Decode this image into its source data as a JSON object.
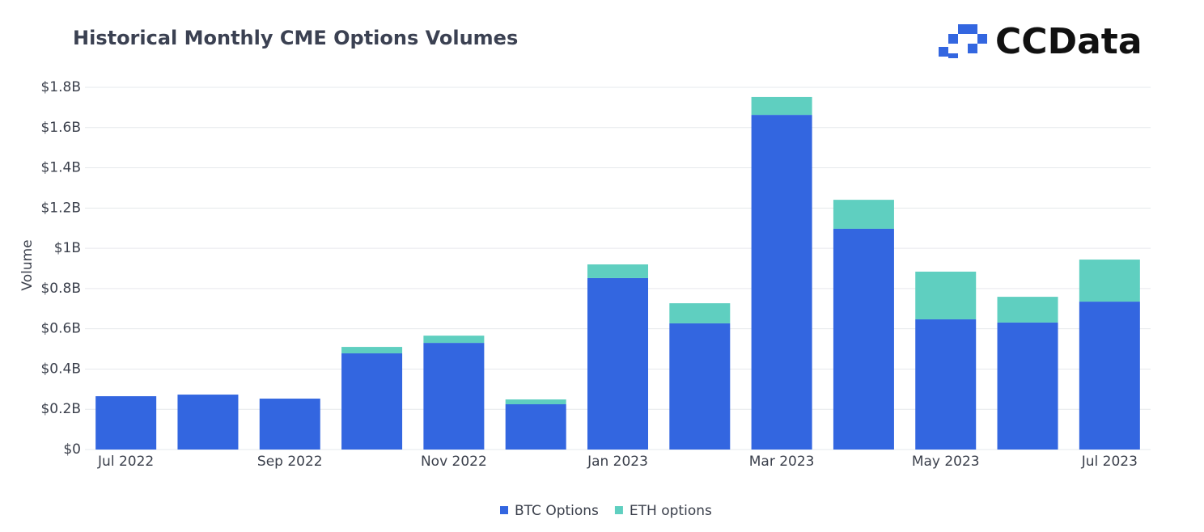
{
  "brand": "CCData",
  "chart_data": {
    "type": "stacked-bar",
    "title": "Historical Monthly CME Options Volumes",
    "y_label": "Volume",
    "categories": [
      "Jul 2022",
      null,
      "Sep 2022",
      null,
      "Nov 2022",
      null,
      "Jan 2023",
      null,
      "Mar 2023",
      null,
      "May 2023",
      null,
      "Jul 2023"
    ],
    "series": [
      {
        "name": "BTC Options",
        "color": "#3366e0",
        "values": [
          265000000,
          273000000,
          253000000,
          478000000,
          530000000,
          225000000,
          852000000,
          627000000,
          1663000000,
          1097000000,
          647000000,
          631000000,
          735000000
        ]
      },
      {
        "name": "ETH options",
        "color": "#5fcfc0",
        "values": [
          0,
          0,
          0,
          32000000,
          36000000,
          24000000,
          68000000,
          100000000,
          89000000,
          144000000,
          237000000,
          128000000,
          209000000
        ]
      }
    ],
    "ylim": [
      0,
      1800000000
    ],
    "yticks": [
      {
        "value": 0,
        "label": "$0"
      },
      {
        "value": 200000000,
        "label": "$0.2B"
      },
      {
        "value": 400000000,
        "label": "$0.4B"
      },
      {
        "value": 600000000,
        "label": "$0.6B"
      },
      {
        "value": 800000000,
        "label": "$0.8B"
      },
      {
        "value": 1000000000,
        "label": "$1B"
      },
      {
        "value": 1200000000,
        "label": "$1.2B"
      },
      {
        "value": 1400000000,
        "label": "$1.4B"
      },
      {
        "value": 1600000000,
        "label": "$1.6B"
      },
      {
        "value": 1800000000,
        "label": "$1.8B"
      }
    ],
    "grid": true,
    "legend": "bottom"
  }
}
